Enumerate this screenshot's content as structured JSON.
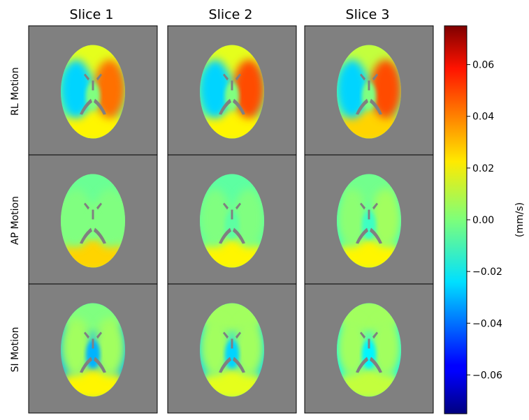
{
  "chart_data": {
    "type": "heatmap",
    "columns": [
      "Slice 1",
      "Slice 2",
      "Slice 3"
    ],
    "rows": [
      "RL Motion",
      "AP Motion",
      "SI Motion"
    ],
    "colorbar": {
      "label": "(mm/s)",
      "colormap": "jet",
      "range": [
        -0.075,
        0.075
      ],
      "ticks": [
        0.06,
        0.04,
        0.02,
        0.0,
        -0.02,
        -0.04,
        -0.06
      ],
      "tick_labels": [
        "0.06",
        "0.04",
        "0.02",
        "0.00",
        "−0.02",
        "−0.04",
        "−0.06"
      ]
    },
    "panels": [
      [
        {
          "left": -0.025,
          "right": 0.04,
          "anterior": 0.015,
          "posterior": 0.02,
          "center": 0.0
        },
        {
          "left": -0.025,
          "right": 0.045,
          "anterior": 0.015,
          "posterior": 0.02,
          "center": 0.0
        },
        {
          "left": -0.025,
          "right": 0.045,
          "anterior": 0.01,
          "posterior": 0.025,
          "center": 0.0
        }
      ],
      [
        {
          "left": 0.0,
          "right": 0.0,
          "anterior": -0.003,
          "posterior": 0.025,
          "center": 0.0
        },
        {
          "left": 0.0,
          "right": 0.0,
          "anterior": -0.005,
          "posterior": 0.02,
          "center": -0.005
        },
        {
          "left": 0.002,
          "right": 0.005,
          "anterior": -0.002,
          "posterior": 0.02,
          "center": -0.01
        }
      ],
      [
        {
          "left": 0.005,
          "right": 0.005,
          "anterior": 0.0,
          "posterior": 0.02,
          "center": -0.03
        },
        {
          "left": 0.005,
          "right": 0.005,
          "anterior": 0.005,
          "posterior": 0.015,
          "center": -0.025
        },
        {
          "left": 0.005,
          "right": 0.005,
          "anterior": 0.005,
          "posterior": 0.01,
          "center": -0.02
        }
      ]
    ],
    "background_color": "#808080"
  }
}
